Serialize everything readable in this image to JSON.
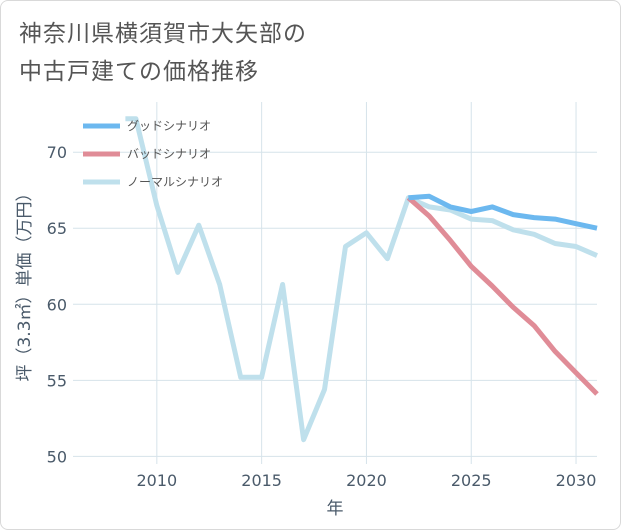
{
  "title_lines": [
    "神奈川県横須賀市大矢部の",
    "中古戸建ての価格推移"
  ],
  "colors": {
    "good": "#6cb8ef",
    "bad": "#e08c97",
    "normal": "#bfe0ec",
    "grid": "#d6e3ea",
    "plot_bg": "#ffffff"
  },
  "chart_data": {
    "type": "line",
    "xlabel": "年",
    "ylabel": "坪（3.3㎡）単価（万円）",
    "xlim": [
      2006,
      2031
    ],
    "ylim": [
      49.5,
      73.3
    ],
    "xticks": [
      2010,
      2015,
      2020,
      2025,
      2030
    ],
    "yticks": [
      50,
      55,
      60,
      65,
      70
    ],
    "grid": true,
    "legend_position": "top-left",
    "series": [
      {
        "name": "グッドシナリオ",
        "color": "#6cb8ef",
        "x": [
          2022,
          2023,
          2024,
          2025,
          2026,
          2027,
          2028,
          2029,
          2030,
          2031
        ],
        "y": [
          67.0,
          67.1,
          66.4,
          66.1,
          66.4,
          65.9,
          65.7,
          65.6,
          65.3,
          65.0
        ]
      },
      {
        "name": "バッドシナリオ",
        "color": "#e08c97",
        "x": [
          2022,
          2023,
          2024,
          2025,
          2026,
          2027,
          2028,
          2029,
          2030,
          2031
        ],
        "y": [
          67.0,
          65.8,
          64.2,
          62.5,
          61.2,
          59.8,
          58.6,
          56.9,
          55.5,
          54.1
        ]
      },
      {
        "name": "ノーマルシナリオ",
        "color": "#bfe0ec",
        "x": [
          2008.5,
          2009,
          2010,
          2011,
          2012,
          2013,
          2014,
          2015,
          2016,
          2017,
          2018,
          2019,
          2020,
          2021,
          2022,
          2023,
          2024,
          2025,
          2026,
          2027,
          2028,
          2029,
          2030,
          2031
        ],
        "y": [
          72.2,
          72.2,
          66.5,
          62.1,
          65.2,
          61.3,
          55.2,
          55.2,
          61.3,
          51.1,
          54.4,
          63.8,
          64.7,
          63.0,
          67.0,
          66.4,
          66.2,
          65.6,
          65.5,
          64.9,
          64.6,
          64.0,
          63.8,
          63.2
        ]
      }
    ]
  }
}
